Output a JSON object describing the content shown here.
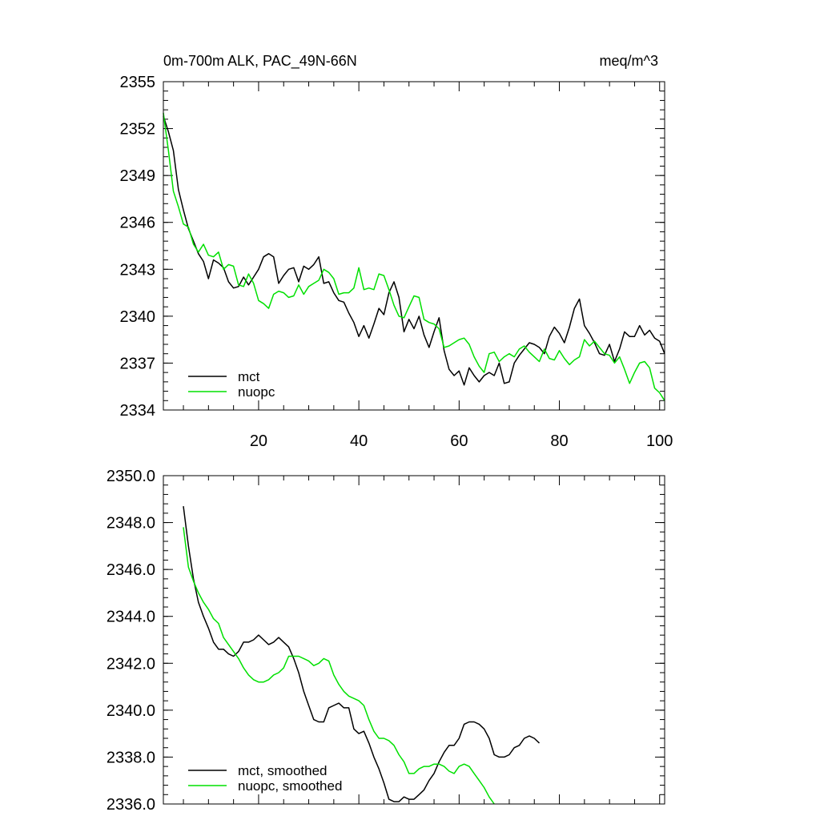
{
  "chart_data": [
    {
      "type": "line",
      "title_left": "0m-700m ALK, PAC_49N-66N",
      "title_right": "meq/m^3",
      "xlabel": "",
      "ylabel": "",
      "xlim": [
        1,
        101
      ],
      "ylim": [
        2334,
        2355
      ],
      "x_ticks": [
        20,
        40,
        60,
        80,
        100
      ],
      "x_tick_labels": [
        "20",
        "40",
        "60",
        "80",
        "100"
      ],
      "y_ticks": [
        2334,
        2337,
        2340,
        2343,
        2346,
        2349,
        2352,
        2355
      ],
      "y_tick_labels": [
        "2334",
        "2337",
        "2340",
        "2343",
        "2346",
        "2349",
        "2352",
        "2355"
      ],
      "legend_position": "bottom-left",
      "series": [
        {
          "name": "mct",
          "color": "#000000",
          "x_start": 1,
          "values": [
            2352.8,
            2351.8,
            2350.6,
            2348.1,
            2346.8,
            2345.6,
            2344.8,
            2344.0,
            2343.5,
            2342.4,
            2343.6,
            2343.4,
            2343.1,
            2342.2,
            2341.8,
            2341.9,
            2342.5,
            2342.0,
            2342.5,
            2343.0,
            2343.8,
            2344.0,
            2343.8,
            2342.1,
            2342.6,
            2343.0,
            2343.1,
            2342.2,
            2343.2,
            2343.0,
            2343.3,
            2343.8,
            2342.1,
            2342.2,
            2341.5,
            2341.0,
            2340.9,
            2340.2,
            2339.6,
            2338.7,
            2339.4,
            2338.6,
            2339.5,
            2340.5,
            2340.1,
            2341.5,
            2342.2,
            2341.2,
            2339.0,
            2339.8,
            2339.2,
            2340.0,
            2338.8,
            2338.0,
            2339.0,
            2339.9,
            2337.8,
            2336.6,
            2336.2,
            2336.5,
            2335.6,
            2336.7,
            2336.2,
            2335.8,
            2336.2,
            2336.4,
            2336.2,
            2337.0,
            2335.7,
            2335.8,
            2337.0,
            2337.5,
            2337.9,
            2338.3,
            2338.2,
            2338.0,
            2337.6,
            2338.7,
            2339.3,
            2338.9,
            2338.3,
            2339.3,
            2340.5,
            2341.1,
            2339.4,
            2338.9,
            2338.3,
            2337.6,
            2337.5,
            2338.2,
            2337.1,
            2337.9,
            2339.0,
            2338.7,
            2338.7,
            2339.4,
            2338.8,
            2339.1,
            2338.6,
            2338.4,
            2337.6
          ]
        },
        {
          "name": "nuopc",
          "color": "#00e000",
          "x_start": 1,
          "values": [
            2353.0,
            2350.6,
            2348.0,
            2347.0,
            2345.9,
            2345.7,
            2344.6,
            2344.1,
            2344.6,
            2343.9,
            2343.8,
            2344.1,
            2343.0,
            2343.3,
            2343.2,
            2342.0,
            2341.9,
            2342.7,
            2342.1,
            2341.0,
            2340.8,
            2340.5,
            2341.4,
            2341.6,
            2341.5,
            2341.2,
            2341.3,
            2342.0,
            2341.4,
            2341.9,
            2342.1,
            2342.3,
            2343.0,
            2342.8,
            2342.4,
            2341.4,
            2341.5,
            2341.5,
            2341.8,
            2343.1,
            2341.7,
            2341.8,
            2341.7,
            2342.7,
            2342.6,
            2341.7,
            2340.7,
            2340.0,
            2339.9,
            2340.6,
            2341.3,
            2341.2,
            2339.8,
            2339.6,
            2339.5,
            2339.2,
            2338.0,
            2338.1,
            2338.3,
            2338.5,
            2338.6,
            2338.2,
            2337.4,
            2336.8,
            2336.4,
            2337.6,
            2337.7,
            2337.1,
            2337.4,
            2337.6,
            2337.4,
            2337.9,
            2338.1,
            2337.7,
            2337.4,
            2337.1,
            2337.9,
            2337.3,
            2337.2,
            2337.8,
            2337.3,
            2336.9,
            2337.2,
            2337.4,
            2338.5,
            2338.1,
            2338.4,
            2338.0,
            2337.6,
            2337.5,
            2337.0,
            2337.4,
            2336.6,
            2335.7,
            2336.4,
            2337.0,
            2337.1,
            2336.7,
            2335.4,
            2335.1,
            2334.6
          ]
        }
      ]
    },
    {
      "type": "line",
      "title_left": "",
      "title_right": "",
      "xlabel": "",
      "ylabel": "",
      "xlim": [
        1,
        101
      ],
      "ylim": [
        2336.0,
        2350.0
      ],
      "x_ticks": [
        20,
        40,
        60,
        80,
        100
      ],
      "y_ticks": [
        2336.0,
        2338.0,
        2340.0,
        2342.0,
        2344.0,
        2346.0,
        2348.0,
        2350.0
      ],
      "y_tick_labels": [
        "2336.0",
        "2338.0",
        "2340.0",
        "2342.0",
        "2344.0",
        "2346.0",
        "2348.0",
        "2350.0"
      ],
      "legend_position": "bottom-left",
      "series": [
        {
          "name": "mct, smoothed",
          "color": "#000000",
          "x_start": 5,
          "values": [
            2348.7,
            2347.0,
            2345.6,
            2344.6,
            2344.0,
            2343.5,
            2342.9,
            2342.6,
            2342.6,
            2342.4,
            2342.3,
            2342.5,
            2342.9,
            2342.9,
            2343.0,
            2343.2,
            2343.0,
            2342.8,
            2342.9,
            2343.1,
            2342.9,
            2342.7,
            2342.2,
            2341.6,
            2340.8,
            2340.2,
            2339.6,
            2339.5,
            2339.5,
            2340.1,
            2340.2,
            2340.3,
            2340.1,
            2340.1,
            2339.2,
            2339.0,
            2339.1,
            2338.6,
            2338.0,
            2337.5,
            2336.9,
            2336.2,
            2336.1,
            2336.1,
            2336.3,
            2336.2,
            2336.2,
            2336.4,
            2336.6,
            2337.0,
            2337.3,
            2337.8,
            2338.2,
            2338.5,
            2338.5,
            2338.8,
            2339.4,
            2339.5,
            2339.5,
            2339.4,
            2339.2,
            2338.8,
            2338.1,
            2338.0,
            2338.0,
            2338.1,
            2338.4,
            2338.5,
            2338.8,
            2338.9,
            2338.8,
            2338.6
          ]
        },
        {
          "name": "nuopc, smoothed",
          "color": "#00e000",
          "x_start": 5,
          "values": [
            2347.8,
            2346.1,
            2345.5,
            2345.0,
            2344.6,
            2344.3,
            2343.9,
            2343.7,
            2343.1,
            2342.8,
            2342.5,
            2342.2,
            2341.8,
            2341.5,
            2341.3,
            2341.2,
            2341.2,
            2341.3,
            2341.5,
            2341.6,
            2341.8,
            2342.3,
            2342.3,
            2342.3,
            2342.2,
            2342.1,
            2341.9,
            2342.0,
            2342.2,
            2342.1,
            2341.5,
            2341.1,
            2340.8,
            2340.6,
            2340.5,
            2340.4,
            2340.2,
            2339.6,
            2339.1,
            2338.8,
            2338.8,
            2338.7,
            2338.5,
            2338.1,
            2337.8,
            2337.3,
            2337.3,
            2337.5,
            2337.6,
            2337.6,
            2337.7,
            2337.7,
            2337.6,
            2337.4,
            2337.3,
            2337.6,
            2337.7,
            2337.6,
            2337.3,
            2337.0,
            2336.7,
            2336.3,
            2336.0
          ]
        }
      ]
    }
  ]
}
